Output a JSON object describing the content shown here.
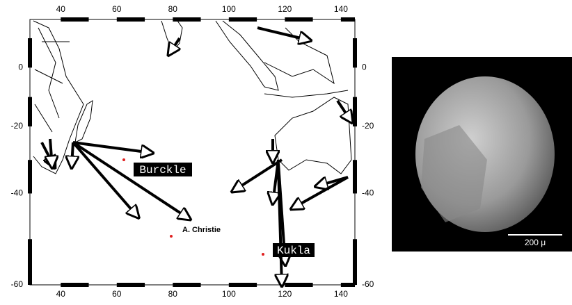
{
  "map": {
    "projection": "mercator",
    "xlim": [
      29,
      145
    ],
    "ylim": [
      -60,
      16.5
    ],
    "xticks": [
      40,
      60,
      80,
      100,
      120,
      140
    ],
    "yticks": [
      0,
      -20,
      -40,
      -60
    ],
    "sites": [
      "Burckle",
      "A. Christie",
      "Kukla"
    ]
  },
  "image": {
    "scale_bar": "200 μ"
  }
}
